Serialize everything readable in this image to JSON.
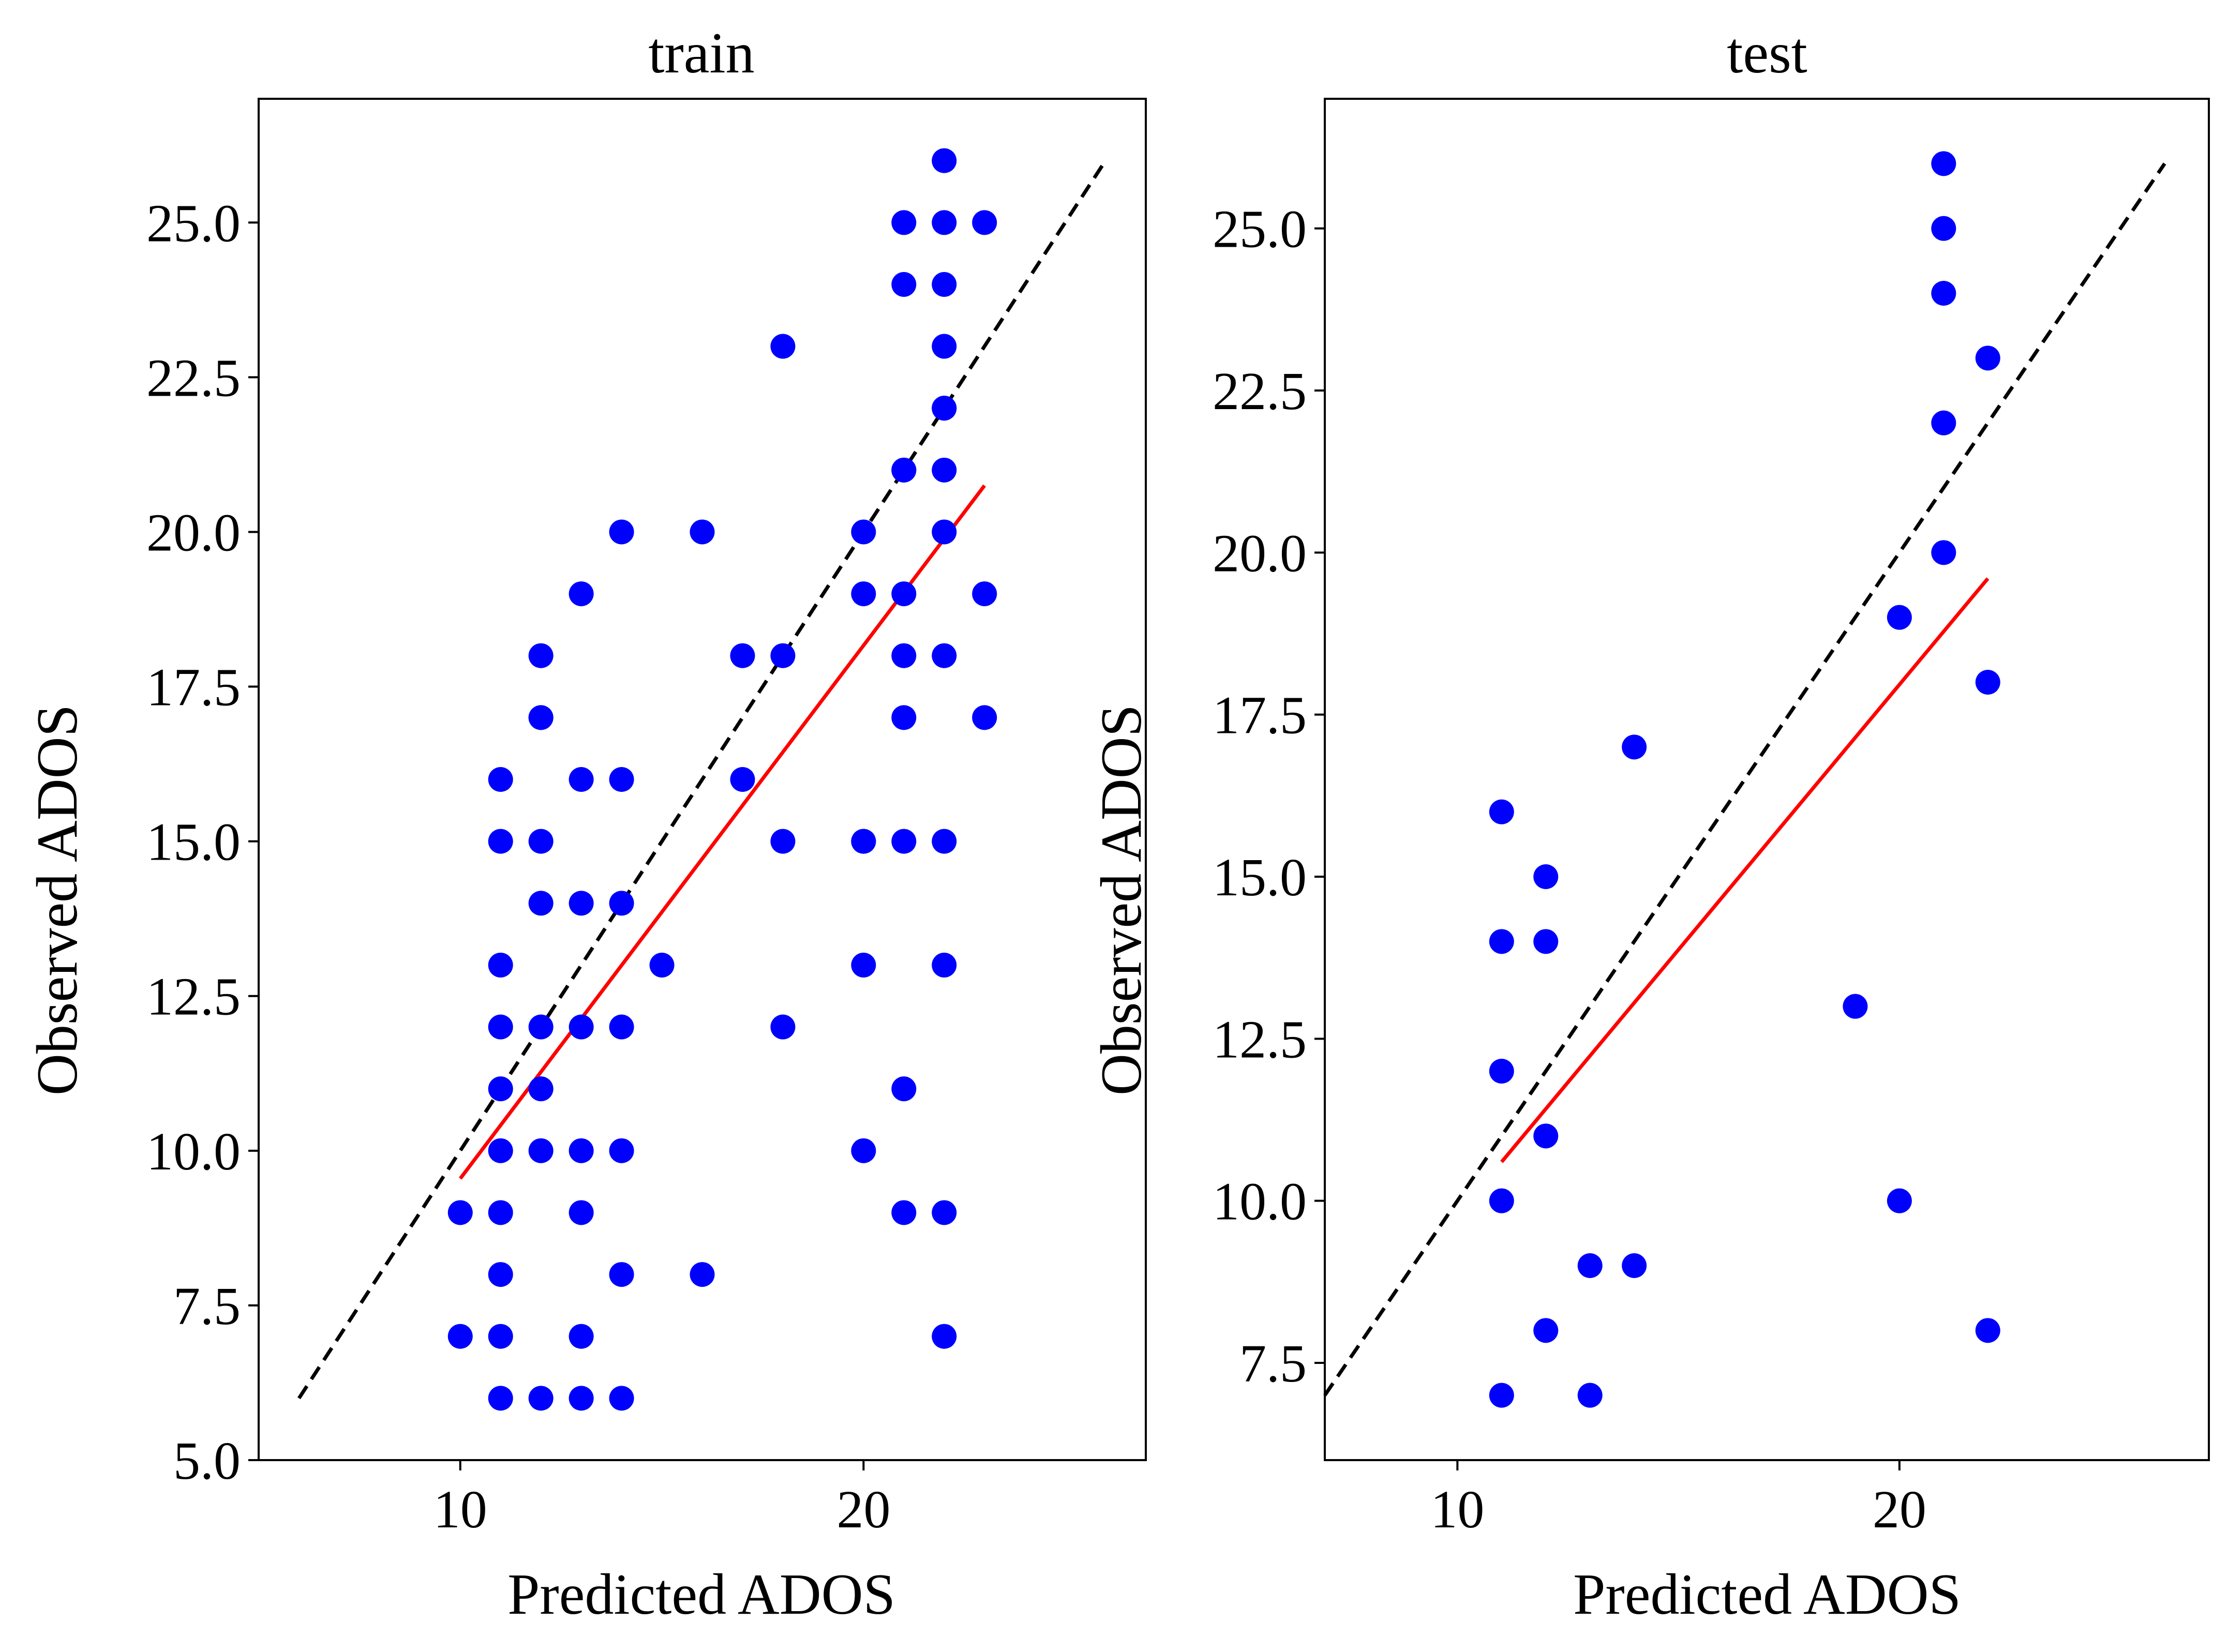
{
  "chart_data": [
    {
      "type": "scatter",
      "title": "train",
      "xlabel": "Predicted ADOS",
      "ylabel": "Observed ADOS",
      "xlim": [
        5,
        27
      ],
      "ylim": [
        5,
        27
      ],
      "xticks": [
        10,
        20
      ],
      "xtick_labels": [
        "10",
        "20"
      ],
      "yticks": [
        5,
        7.5,
        10,
        12.5,
        15,
        17.5,
        20,
        22.5,
        25
      ],
      "ytick_labels": [
        "5.0",
        "7.5",
        "10.0",
        "12.5",
        "15.0",
        "17.5",
        "20.0",
        "22.5",
        "25.0"
      ],
      "grid": false,
      "points": {
        "x": [
          10,
          10,
          11,
          11,
          11,
          11,
          11,
          11,
          11,
          11,
          11,
          11,
          12,
          12,
          12,
          12,
          12,
          12,
          12,
          12,
          12,
          13,
          13,
          13,
          13,
          13,
          13,
          13,
          13,
          14,
          14,
          14,
          14,
          14,
          14,
          14,
          15,
          16,
          16,
          17,
          17,
          18,
          18,
          18,
          18,
          20,
          20,
          20,
          20,
          20,
          20,
          21,
          21,
          21,
          21,
          21,
          21,
          21,
          21,
          21,
          21,
          22,
          22,
          22,
          22,
          22,
          22,
          22,
          22,
          22,
          22,
          22,
          22,
          22,
          23,
          23,
          23
        ],
        "y": [
          7,
          9,
          6,
          7,
          8,
          9,
          10,
          11,
          12,
          13,
          15,
          16,
          17,
          6,
          10,
          11,
          12,
          14,
          15,
          17,
          18,
          6,
          7,
          9,
          10,
          12,
          14,
          16,
          19,
          6,
          8,
          10,
          12,
          14,
          16,
          20,
          13,
          8,
          20,
          16,
          18,
          12,
          15,
          18,
          23,
          10,
          13,
          15,
          19,
          20,
          15,
          9,
          11,
          15,
          17,
          18,
          19,
          21,
          24,
          25,
          21,
          7,
          9,
          13,
          15,
          18,
          20,
          21,
          22,
          23,
          24,
          25,
          26,
          22,
          17,
          19,
          25
        ]
      },
      "point_color": "#0000ff",
      "reference_line": {
        "style": "dashed",
        "color": "#000000",
        "x": [
          6,
          26
        ],
        "y": [
          6,
          26
        ]
      },
      "fit_line": {
        "color": "#ff0000",
        "x": [
          10,
          23
        ],
        "y": [
          9.55,
          20.75
        ]
      }
    },
    {
      "type": "scatter",
      "title": "test",
      "xlabel": "Predicted ADOS",
      "ylabel": "Observed ADOS",
      "xlim": [
        7,
        27
      ],
      "ylim": [
        6,
        27
      ],
      "xticks": [
        10,
        20
      ],
      "xtick_labels": [
        "10",
        "20"
      ],
      "yticks": [
        7.5,
        10,
        12.5,
        15,
        17.5,
        20,
        22.5,
        25
      ],
      "ytick_labels": [
        "7.5",
        "10.0",
        "12.5",
        "15.0",
        "17.5",
        "20.0",
        "22.5",
        "25.0"
      ],
      "grid": false,
      "points": {
        "x": [
          11,
          11,
          11,
          11,
          11,
          12,
          12,
          12,
          12,
          13,
          13,
          14,
          14,
          19,
          20,
          20,
          21,
          21,
          21,
          21,
          21,
          22,
          22,
          22
        ],
        "y": [
          7,
          10,
          12,
          14,
          16,
          8,
          11,
          14,
          15,
          7,
          9,
          9,
          17,
          13,
          10,
          19,
          20,
          22,
          24,
          25,
          26,
          8,
          18,
          23
        ]
      },
      "point_color": "#0000ff",
      "reference_line": {
        "style": "dashed",
        "color": "#000000",
        "x": [
          7,
          26
        ],
        "y": [
          7,
          26
        ]
      },
      "fit_line": {
        "color": "#ff0000",
        "x": [
          11,
          22
        ],
        "y": [
          10.6,
          19.6
        ]
      }
    }
  ]
}
